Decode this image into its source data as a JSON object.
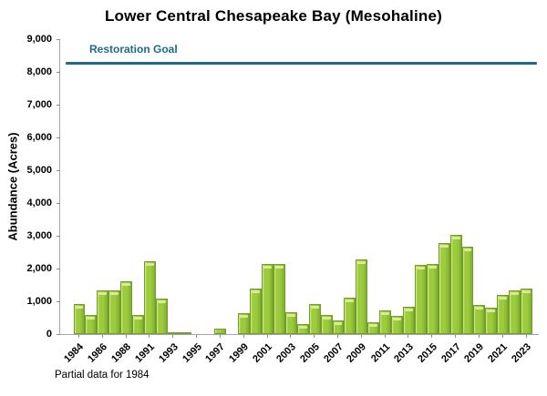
{
  "goal": {
    "label": "Restoration Goal",
    "value": 8280,
    "color": "#1F6B87"
  },
  "footnote": "Partial data for 1984",
  "chart_data": {
    "type": "bar",
    "title": "Lower Central Chesapeake Bay (Mesohaline)",
    "xlabel": "",
    "ylabel": "Abundance (Acres)",
    "ylim": [
      0,
      9000
    ],
    "ytick_interval": 1000,
    "ytick_labels": [
      "0",
      "1,000",
      "2,000",
      "3,000",
      "4,000",
      "5,000",
      "6,000",
      "7,000",
      "8,000",
      "9,000"
    ],
    "grid": "off",
    "legend": "none",
    "categories": [
      1984,
      1985,
      1986,
      1987,
      1988,
      1990,
      1991,
      1992,
      1993,
      1994,
      1995,
      1996,
      1997,
      1998,
      1999,
      2000,
      2001,
      2002,
      2003,
      2004,
      2005,
      2006,
      2007,
      2008,
      2009,
      2010,
      2011,
      2012,
      2013,
      2014,
      2015,
      2016,
      2017,
      2018,
      2019,
      2020,
      2021,
      2022,
      2023
    ],
    "values": [
      910,
      580,
      1340,
      1340,
      1620,
      580,
      2210,
      1090,
      50,
      40,
      0,
      0,
      160,
      0,
      650,
      1380,
      2150,
      2150,
      670,
      300,
      910,
      580,
      420,
      1120,
      2290,
      350,
      710,
      560,
      840,
      2100,
      2150,
      2780,
      3030,
      2660,
      880,
      800,
      1190,
      1330,
      1380
    ],
    "x_tick_labels": [
      "1984",
      "1986",
      "1988",
      "1991",
      "1993",
      "1995",
      "1997",
      "1999",
      "2001",
      "2003",
      "2005",
      "2007",
      "2009",
      "2011",
      "2013",
      "2015",
      "2017",
      "2019",
      "2021",
      "2023"
    ],
    "annotations": [
      {
        "text": "Restoration Goal",
        "y": 8280
      }
    ],
    "colors": {
      "bar_fill": "#9CCB3C",
      "bar_highlight": "#D9EC93",
      "bar_shade": "#7FAE31",
      "bar_edge": "#6F9E2C",
      "axis": "#A6A6A6",
      "goal_line": "#1F6B87",
      "text": "#000000"
    }
  }
}
